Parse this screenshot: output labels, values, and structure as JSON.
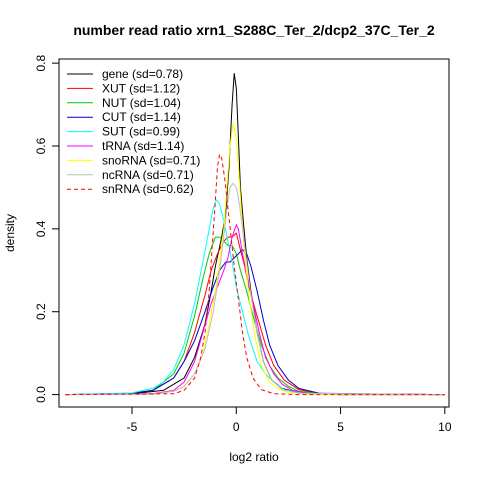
{
  "chart_data": {
    "type": "line",
    "title": "number read ratio xrn1_S288C_Ter_2/dcp2_37C_Ter_2",
    "xlabel": "log2 ratio",
    "ylabel": "density",
    "xlim": [
      -8.5,
      10.2
    ],
    "ylim": [
      -0.03,
      0.81
    ],
    "xticks": [
      -5,
      0,
      5,
      10
    ],
    "yticks": [
      0.0,
      0.2,
      0.4,
      0.6,
      0.8
    ],
    "legend_position": "top-left",
    "grid": false,
    "series": [
      {
        "name": "gene (sd=0.78)",
        "color": "#000000",
        "dash": false,
        "points": [
          [
            -8.2,
            0
          ],
          [
            -5,
            0.002
          ],
          [
            -3.5,
            0.01
          ],
          [
            -2.5,
            0.04
          ],
          [
            -2,
            0.09
          ],
          [
            -1.5,
            0.17
          ],
          [
            -1.2,
            0.25
          ],
          [
            -1,
            0.31
          ],
          [
            -0.7,
            0.38
          ],
          [
            -0.5,
            0.44
          ],
          [
            -0.35,
            0.55
          ],
          [
            -0.2,
            0.7
          ],
          [
            -0.1,
            0.775
          ],
          [
            0,
            0.74
          ],
          [
            0.1,
            0.62
          ],
          [
            0.2,
            0.5
          ],
          [
            0.35,
            0.41
          ],
          [
            0.5,
            0.33
          ],
          [
            0.7,
            0.25
          ],
          [
            1,
            0.15
          ],
          [
            1.3,
            0.08
          ],
          [
            1.7,
            0.035
          ],
          [
            2.2,
            0.015
          ],
          [
            3,
            0.004
          ],
          [
            5,
            0
          ],
          [
            10,
            0
          ]
        ]
      },
      {
        "name": "XUT (sd=1.12)",
        "color": "#ff0000",
        "dash": false,
        "points": [
          [
            -8.2,
            0
          ],
          [
            -5,
            0.003
          ],
          [
            -4,
            0.01
          ],
          [
            -3,
            0.04
          ],
          [
            -2.5,
            0.08
          ],
          [
            -2,
            0.15
          ],
          [
            -1.5,
            0.24
          ],
          [
            -1.2,
            0.3
          ],
          [
            -0.9,
            0.34
          ],
          [
            -0.6,
            0.37
          ],
          [
            -0.4,
            0.38
          ],
          [
            -0.2,
            0.38
          ],
          [
            0,
            0.39
          ],
          [
            0.2,
            0.35
          ],
          [
            0.4,
            0.31
          ],
          [
            0.6,
            0.26
          ],
          [
            1,
            0.19
          ],
          [
            1.4,
            0.12
          ],
          [
            1.8,
            0.07
          ],
          [
            2.3,
            0.035
          ],
          [
            3,
            0.012
          ],
          [
            4,
            0.002
          ],
          [
            10,
            0
          ]
        ]
      },
      {
        "name": "NUT (sd=1.04)",
        "color": "#00cc00",
        "dash": false,
        "points": [
          [
            -8.2,
            0
          ],
          [
            -5,
            0.003
          ],
          [
            -4,
            0.01
          ],
          [
            -3,
            0.05
          ],
          [
            -2.5,
            0.1
          ],
          [
            -2,
            0.19
          ],
          [
            -1.6,
            0.28
          ],
          [
            -1.3,
            0.34
          ],
          [
            -1,
            0.38
          ],
          [
            -0.8,
            0.38
          ],
          [
            -0.6,
            0.37
          ],
          [
            -0.4,
            0.36
          ],
          [
            -0.2,
            0.36
          ],
          [
            0,
            0.34
          ],
          [
            0.2,
            0.3
          ],
          [
            0.5,
            0.25
          ],
          [
            0.8,
            0.19
          ],
          [
            1.2,
            0.12
          ],
          [
            1.6,
            0.07
          ],
          [
            2,
            0.04
          ],
          [
            2.5,
            0.02
          ],
          [
            3,
            0.008
          ],
          [
            4,
            0.002
          ],
          [
            10,
            0
          ]
        ]
      },
      {
        "name": "CUT (sd=1.14)",
        "color": "#0000cc",
        "dash": false,
        "points": [
          [
            -8.2,
            0
          ],
          [
            -5,
            0.003
          ],
          [
            -4,
            0.01
          ],
          [
            -3,
            0.04
          ],
          [
            -2.5,
            0.08
          ],
          [
            -2,
            0.13
          ],
          [
            -1.5,
            0.2
          ],
          [
            -1.1,
            0.26
          ],
          [
            -0.8,
            0.3
          ],
          [
            -0.5,
            0.32
          ],
          [
            -0.3,
            0.32
          ],
          [
            -0.1,
            0.33
          ],
          [
            0.1,
            0.34
          ],
          [
            0.3,
            0.35
          ],
          [
            0.5,
            0.34
          ],
          [
            0.7,
            0.31
          ],
          [
            1,
            0.25
          ],
          [
            1.3,
            0.18
          ],
          [
            1.6,
            0.12
          ],
          [
            2,
            0.07
          ],
          [
            2.5,
            0.035
          ],
          [
            3,
            0.015
          ],
          [
            4,
            0.003
          ],
          [
            10,
            0
          ]
        ]
      },
      {
        "name": "SUT (sd=0.99)",
        "color": "#00ffff",
        "dash": false,
        "points": [
          [
            -8.2,
            0
          ],
          [
            -5,
            0.004
          ],
          [
            -4,
            0.015
          ],
          [
            -3.5,
            0.03
          ],
          [
            -3,
            0.06
          ],
          [
            -2.5,
            0.12
          ],
          [
            -2,
            0.22
          ],
          [
            -1.6,
            0.32
          ],
          [
            -1.3,
            0.4
          ],
          [
            -1.1,
            0.45
          ],
          [
            -0.95,
            0.47
          ],
          [
            -0.8,
            0.46
          ],
          [
            -0.6,
            0.42
          ],
          [
            -0.4,
            0.37
          ],
          [
            -0.2,
            0.32
          ],
          [
            0,
            0.26
          ],
          [
            0.3,
            0.2
          ],
          [
            0.6,
            0.14
          ],
          [
            1,
            0.08
          ],
          [
            1.4,
            0.05
          ],
          [
            1.8,
            0.03
          ],
          [
            2.3,
            0.012
          ],
          [
            3,
            0.004
          ],
          [
            4,
            0.001
          ],
          [
            10,
            0
          ]
        ]
      },
      {
        "name": "tRNA (sd=1.14)",
        "color": "#ff00ff",
        "dash": false,
        "points": [
          [
            -8.2,
            0
          ],
          [
            -4,
            0.002
          ],
          [
            -3,
            0.01
          ],
          [
            -2.5,
            0.03
          ],
          [
            -2,
            0.08
          ],
          [
            -1.6,
            0.15
          ],
          [
            -1.2,
            0.22
          ],
          [
            -0.9,
            0.26
          ],
          [
            -0.6,
            0.3
          ],
          [
            -0.4,
            0.33
          ],
          [
            -0.2,
            0.38
          ],
          [
            0,
            0.41
          ],
          [
            0.1,
            0.4
          ],
          [
            0.3,
            0.34
          ],
          [
            0.5,
            0.29
          ],
          [
            0.8,
            0.22
          ],
          [
            1.1,
            0.15
          ],
          [
            1.4,
            0.09
          ],
          [
            1.8,
            0.05
          ],
          [
            2.2,
            0.025
          ],
          [
            2.7,
            0.01
          ],
          [
            3.5,
            0.002
          ],
          [
            10,
            0
          ]
        ]
      },
      {
        "name": "snoRNA (sd=0.71)",
        "color": "#ffff00",
        "dash": false,
        "points": [
          [
            -8.2,
            0
          ],
          [
            -4,
            0.001
          ],
          [
            -3,
            0.008
          ],
          [
            -2.5,
            0.02
          ],
          [
            -2,
            0.05
          ],
          [
            -1.6,
            0.1
          ],
          [
            -1.3,
            0.17
          ],
          [
            -1,
            0.25
          ],
          [
            -0.8,
            0.32
          ],
          [
            -0.6,
            0.4
          ],
          [
            -0.45,
            0.5
          ],
          [
            -0.3,
            0.6
          ],
          [
            -0.15,
            0.655
          ],
          [
            0,
            0.62
          ],
          [
            0.1,
            0.55
          ],
          [
            0.25,
            0.44
          ],
          [
            0.4,
            0.34
          ],
          [
            0.6,
            0.24
          ],
          [
            0.9,
            0.14
          ],
          [
            1.2,
            0.07
          ],
          [
            1.6,
            0.03
          ],
          [
            2,
            0.015
          ],
          [
            2.5,
            0.005
          ],
          [
            3.5,
            0.001
          ],
          [
            10,
            0
          ]
        ]
      },
      {
        "name": "ncRNA (sd=0.71)",
        "color": "#bebebe",
        "dash": false,
        "points": [
          [
            -8.2,
            0
          ],
          [
            -4,
            0.001
          ],
          [
            -3,
            0.008
          ],
          [
            -2.5,
            0.02
          ],
          [
            -2,
            0.05
          ],
          [
            -1.5,
            0.11
          ],
          [
            -1.1,
            0.2
          ],
          [
            -0.8,
            0.3
          ],
          [
            -0.6,
            0.38
          ],
          [
            -0.45,
            0.45
          ],
          [
            -0.3,
            0.5
          ],
          [
            -0.15,
            0.51
          ],
          [
            0,
            0.5
          ],
          [
            0.15,
            0.46
          ],
          [
            0.3,
            0.4
          ],
          [
            0.5,
            0.32
          ],
          [
            0.7,
            0.24
          ],
          [
            1,
            0.15
          ],
          [
            1.3,
            0.08
          ],
          [
            1.7,
            0.035
          ],
          [
            2.2,
            0.012
          ],
          [
            3,
            0.003
          ],
          [
            10,
            0
          ]
        ]
      },
      {
        "name": "snRNA (sd=0.62)",
        "color": "#ff0000",
        "dash": true,
        "points": [
          [
            -8.2,
            0
          ],
          [
            -3,
            0.002
          ],
          [
            -2.5,
            0.01
          ],
          [
            -2,
            0.04
          ],
          [
            -1.7,
            0.09
          ],
          [
            -1.5,
            0.15
          ],
          [
            -1.3,
            0.25
          ],
          [
            -1.15,
            0.36
          ],
          [
            -1,
            0.47
          ],
          [
            -0.9,
            0.55
          ],
          [
            -0.8,
            0.58
          ],
          [
            -0.7,
            0.57
          ],
          [
            -0.55,
            0.52
          ],
          [
            -0.4,
            0.45
          ],
          [
            -0.25,
            0.38
          ],
          [
            -0.1,
            0.31
          ],
          [
            0.1,
            0.23
          ],
          [
            0.3,
            0.15
          ],
          [
            0.5,
            0.09
          ],
          [
            0.8,
            0.04
          ],
          [
            1.2,
            0.012
          ],
          [
            1.8,
            0.002
          ],
          [
            3,
            0
          ],
          [
            10,
            0
          ]
        ]
      }
    ]
  }
}
